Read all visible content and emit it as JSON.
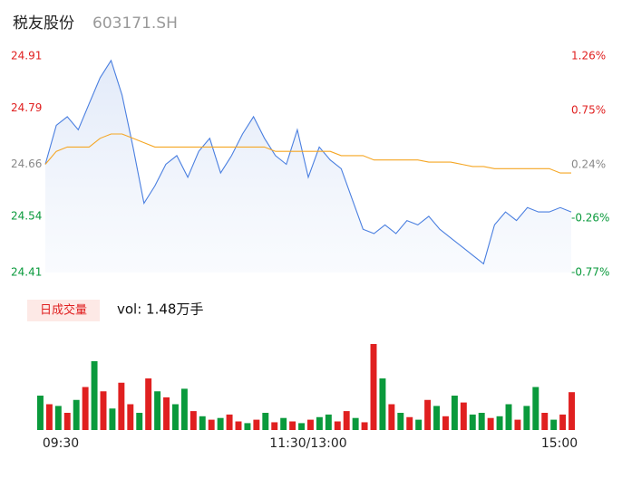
{
  "header": {
    "name": "税友股份",
    "code": "603171.SH"
  },
  "chart_data": [
    {
      "type": "line",
      "yticks": [
        24.91,
        24.79,
        24.66,
        24.54,
        24.41
      ],
      "ylim": [
        24.41,
        24.91
      ],
      "ytick_colors": [
        "#e02020",
        "#e02020",
        "#888888",
        "#0a9a3c",
        "#0a9a3c"
      ],
      "y2ticks": [
        {
          "value": 1.26,
          "label": "1.26%"
        },
        {
          "value": 0.75,
          "label": "0.75%"
        },
        {
          "value": 0.24,
          "label": "0.24%"
        },
        {
          "value": -0.26,
          "label": "-0.26%"
        },
        {
          "value": -0.77,
          "label": "-0.77%"
        }
      ],
      "y2lim": [
        -0.77,
        1.26
      ],
      "y2tick_colors": [
        "#e02020",
        "#e02020",
        "#888888",
        "#0a9a3c",
        "#0a9a3c"
      ],
      "series": [
        {
          "color": "#4a7fe0",
          "values": [
            24.66,
            24.75,
            24.77,
            24.74,
            24.8,
            24.86,
            24.9,
            24.82,
            24.7,
            24.57,
            24.61,
            24.66,
            24.68,
            24.63,
            24.69,
            24.72,
            24.64,
            24.68,
            24.73,
            24.77,
            24.72,
            24.68,
            24.66,
            24.74,
            24.63,
            24.7,
            24.67,
            24.65,
            24.58,
            24.51,
            24.5,
            24.52,
            24.5,
            24.53,
            24.52,
            24.54,
            24.51,
            24.49,
            24.47,
            24.45,
            24.43,
            24.52,
            24.55,
            24.53,
            24.56,
            24.55,
            24.55,
            24.56,
            24.55
          ]
        },
        {
          "color": "#f5a623",
          "values": [
            24.66,
            24.69,
            24.7,
            24.7,
            24.7,
            24.72,
            24.73,
            24.73,
            24.72,
            24.71,
            24.7,
            24.7,
            24.7,
            24.7,
            24.7,
            24.7,
            24.7,
            24.7,
            24.7,
            24.7,
            24.7,
            24.69,
            24.69,
            24.69,
            24.69,
            24.69,
            24.69,
            24.68,
            24.68,
            24.68,
            24.67,
            24.67,
            24.67,
            24.67,
            24.67,
            24.665,
            24.665,
            24.665,
            24.66,
            24.655,
            24.655,
            24.65,
            24.65,
            24.65,
            24.65,
            24.65,
            24.65,
            24.64,
            24.64
          ]
        }
      ]
    },
    {
      "type": "bar",
      "title": "日成交量",
      "subtitle": "vol: 1.48万手",
      "xticks": [
        "09:30",
        "11:30/13:00",
        "15:00"
      ],
      "ylim": [
        0,
        100
      ],
      "up_color": "#e02020",
      "down_color": "#0a9a3c",
      "values": [
        40,
        30,
        28,
        20,
        35,
        50,
        80,
        45,
        25,
        55,
        30,
        20,
        60,
        45,
        38,
        30,
        48,
        22,
        16,
        12,
        14,
        18,
        10,
        8,
        12,
        20,
        9,
        14,
        10,
        8,
        12,
        15,
        18,
        10,
        22,
        14,
        9,
        100,
        60,
        30,
        20,
        15,
        12,
        35,
        28,
        16,
        40,
        32,
        18,
        20,
        14,
        16,
        30,
        12,
        28,
        50,
        20,
        12,
        18,
        44
      ],
      "directions": [
        "down",
        "up",
        "down",
        "up",
        "down",
        "up",
        "down",
        "up",
        "down",
        "up",
        "up",
        "down",
        "up",
        "down",
        "up",
        "down",
        "down",
        "up",
        "down",
        "up",
        "down",
        "up",
        "up",
        "down",
        "up",
        "down",
        "up",
        "down",
        "up",
        "down",
        "up",
        "down",
        "down",
        "up",
        "up",
        "down",
        "up",
        "up",
        "down",
        "up",
        "down",
        "up",
        "down",
        "up",
        "down",
        "up",
        "down",
        "up",
        "down",
        "down",
        "up",
        "down",
        "down",
        "up",
        "down",
        "down",
        "up",
        "down",
        "up",
        "up"
      ]
    }
  ]
}
